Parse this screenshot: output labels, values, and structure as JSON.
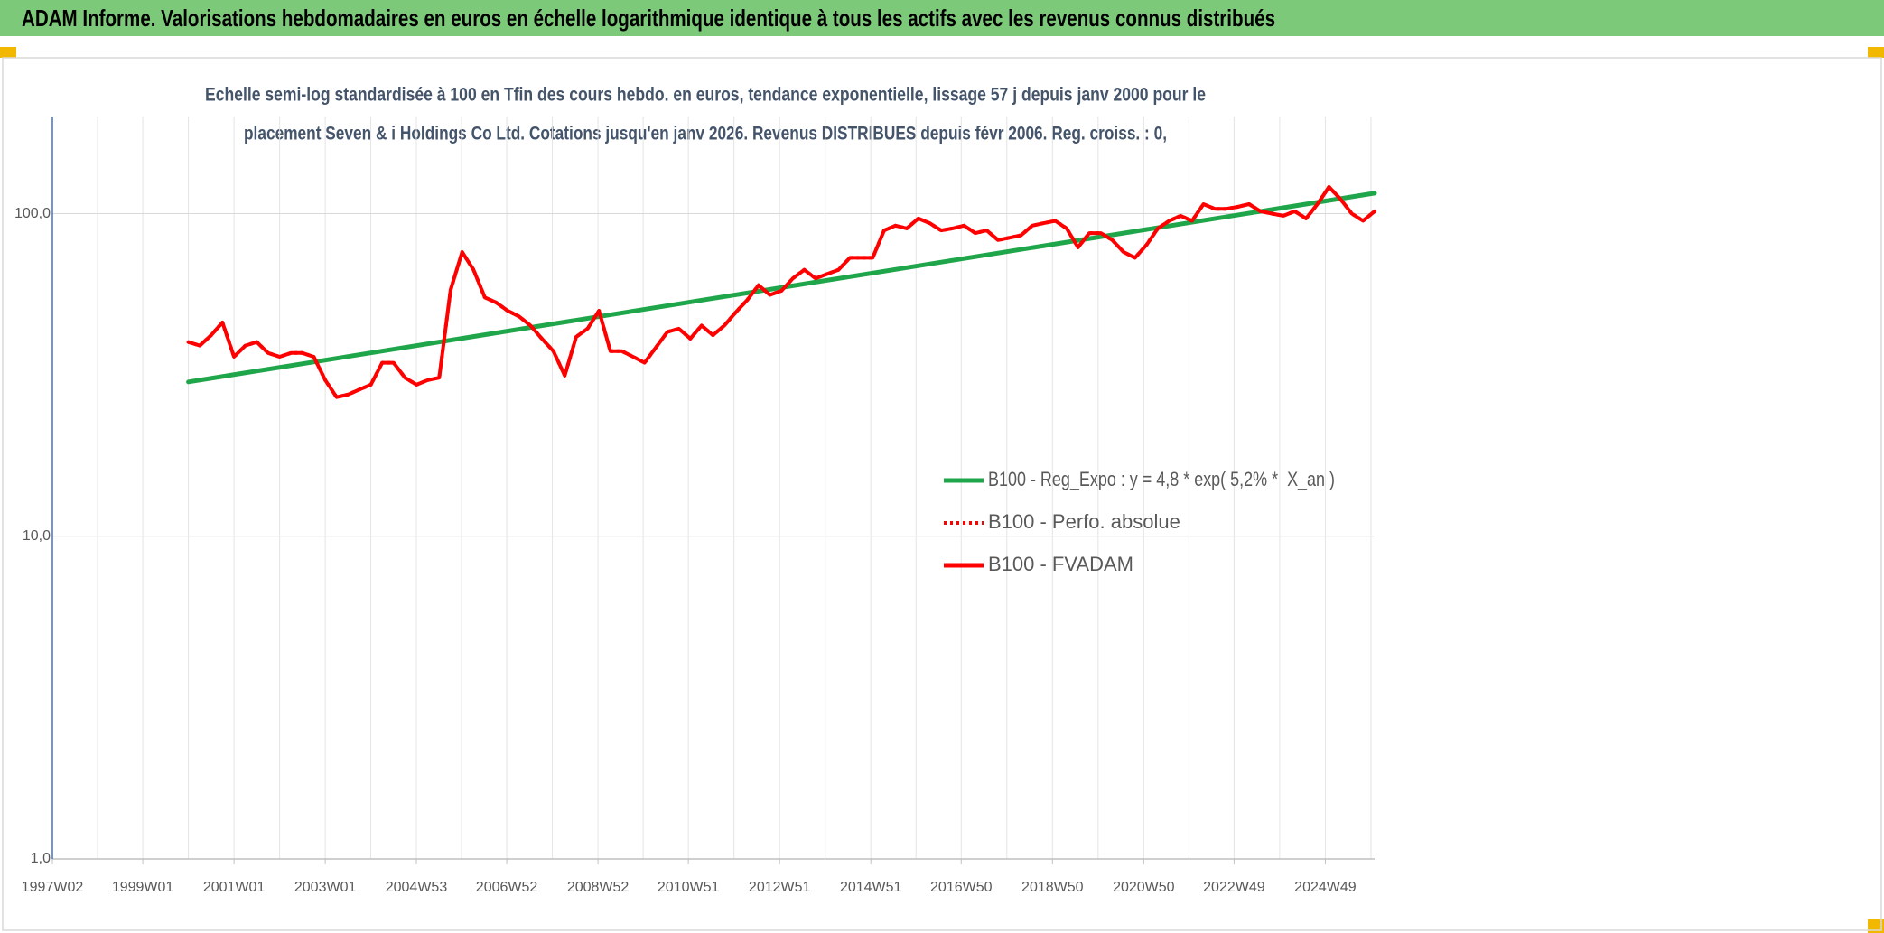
{
  "chart_data": {
    "type": "line",
    "title": "ADAM Informe. Valorisations hebdomadaires en euros en échelle logarithmique identique à tous les actifs avec les revenus connus distribués",
    "subtitle": [
      "Echelle semi-log standardisée à 100 en Tfin des cours hebdo. en euros, tendance exponentielle, lissage 57 j depuis janv 2000 pour le",
      "placement Seven & i Holdings Co Ltd. Cotations jusqu'en janv 2026. Revenus DISTRIBUES depuis févr 2006. Reg. croiss. : 0,"
    ],
    "log_scale": true,
    "grid": true,
    "legend": "right",
    "ylim": [
      1,
      200
    ],
    "yticks": [
      {
        "value": 1,
        "label": "1,0"
      },
      {
        "value": 10,
        "label": "10,0"
      },
      {
        "value": 100,
        "label": "100,0"
      }
    ],
    "xlim": [
      "1997W02",
      "2026W01"
    ],
    "xticks": [
      "1997W02",
      "1999W01",
      "2001W01",
      "2003W01",
      "2004W53",
      "2006W52",
      "2008W52",
      "2010W51",
      "2012W51",
      "2014W51",
      "2016W50",
      "2018W50",
      "2020W50",
      "2022W49",
      "2024W49"
    ],
    "series": [
      {
        "name": "B100 - Reg_Expo : y = 4,8 * exp( 5,2% *  X_an )",
        "color": "#1fa64a",
        "style": "solid",
        "x": [
          "2000W01",
          "2026W01"
        ],
        "values": [
          30.1,
          115.7
        ]
      },
      {
        "name": "B100 - Perfo. absolue",
        "color": "#ff0000",
        "style": "dotted",
        "x": [
          "2000W01",
          "2000W14",
          "2000W27",
          "2000W40",
          "2001W01",
          "2001W14",
          "2001W27",
          "2001W40",
          "2002W01",
          "2002W14",
          "2002W27",
          "2002W40",
          "2003W01",
          "2003W14",
          "2003W27",
          "2003W40",
          "2004W01",
          "2004W14",
          "2004W27",
          "2004W40",
          "2005W01",
          "2005W14",
          "2005W27",
          "2005W40",
          "2006W01",
          "2006W14",
          "2006W27",
          "2006W40",
          "2007W01",
          "2007W14",
          "2007W27",
          "2007W40",
          "2008W01",
          "2008W14",
          "2008W27",
          "2008W40",
          "2009W01",
          "2009W14",
          "2009W27",
          "2009W40",
          "2010W01",
          "2010W14",
          "2010W27",
          "2010W40",
          "2011W01",
          "2011W14",
          "2011W27",
          "2011W40",
          "2012W01",
          "2012W14",
          "2012W27",
          "2012W40",
          "2013W01",
          "2013W14",
          "2013W27",
          "2013W40",
          "2014W01",
          "2014W14",
          "2014W27",
          "2014W40",
          "2015W01",
          "2015W14",
          "2015W27",
          "2015W40",
          "2016W01",
          "2016W14",
          "2016W27",
          "2016W40",
          "2017W01",
          "2017W14",
          "2017W27",
          "2017W40",
          "2018W01",
          "2018W14",
          "2018W27",
          "2018W40",
          "2019W01",
          "2019W14",
          "2019W27",
          "2019W40",
          "2020W01",
          "2020W14",
          "2020W27",
          "2020W40",
          "2021W01",
          "2021W14",
          "2021W27",
          "2021W40",
          "2022W01",
          "2022W14",
          "2022W27",
          "2022W40",
          "2023W01",
          "2023W14",
          "2023W27",
          "2023W40",
          "2024W01",
          "2024W14",
          "2024W27",
          "2024W40",
          "2025W01",
          "2025W14",
          "2025W27",
          "2025W40",
          "2026W01"
        ],
        "values": [
          40,
          39,
          42,
          46,
          36,
          39,
          40,
          37,
          36,
          37,
          37,
          36,
          30.5,
          27,
          27.5,
          28.5,
          29.5,
          34.5,
          34.5,
          31,
          29.5,
          30.5,
          31,
          58,
          76,
          67,
          55,
          53,
          50,
          48,
          45,
          41,
          37.5,
          31.5,
          41.5,
          44,
          50,
          37.5,
          37.5,
          36,
          34.5,
          38.5,
          43,
          44,
          41,
          45,
          42,
          45,
          49.5,
          54,
          60,
          56,
          57.7,
          63,
          67,
          63,
          65,
          67,
          73,
          73,
          73,
          88.7,
          91.8,
          90,
          96.6,
          93.4,
          88.7,
          90,
          91.8,
          87,
          88.7,
          82.8,
          84.2,
          85.7,
          91.8,
          93.4,
          95,
          90,
          78.6,
          87,
          87,
          82.8,
          76,
          73,
          80,
          90,
          95,
          98.5,
          95,
          107,
          103.5,
          103.5,
          105,
          107,
          101.7,
          100,
          98.5,
          101.7,
          96.6,
          107,
          121,
          111,
          100,
          95,
          101.7
        ]
      },
      {
        "name": "B100 - FVADAM",
        "color": "#ff0000",
        "style": "solid",
        "x": [
          "2000W01",
          "2000W14",
          "2000W27",
          "2000W40",
          "2001W01",
          "2001W14",
          "2001W27",
          "2001W40",
          "2002W01",
          "2002W14",
          "2002W27",
          "2002W40",
          "2003W01",
          "2003W14",
          "2003W27",
          "2003W40",
          "2004W01",
          "2004W14",
          "2004W27",
          "2004W40",
          "2005W01",
          "2005W14",
          "2005W27",
          "2005W40",
          "2006W01",
          "2006W14",
          "2006W27",
          "2006W40",
          "2007W01",
          "2007W14",
          "2007W27",
          "2007W40",
          "2008W01",
          "2008W14",
          "2008W27",
          "2008W40",
          "2009W01",
          "2009W14",
          "2009W27",
          "2009W40",
          "2010W01",
          "2010W14",
          "2010W27",
          "2010W40",
          "2011W01",
          "2011W14",
          "2011W27",
          "2011W40",
          "2012W01",
          "2012W14",
          "2012W27",
          "2012W40",
          "2013W01",
          "2013W14",
          "2013W27",
          "2013W40",
          "2014W01",
          "2014W14",
          "2014W27",
          "2014W40",
          "2015W01",
          "2015W14",
          "2015W27",
          "2015W40",
          "2016W01",
          "2016W14",
          "2016W27",
          "2016W40",
          "2017W01",
          "2017W14",
          "2017W27",
          "2017W40",
          "2018W01",
          "2018W14",
          "2018W27",
          "2018W40",
          "2019W01",
          "2019W14",
          "2019W27",
          "2019W40",
          "2020W01",
          "2020W14",
          "2020W27",
          "2020W40",
          "2021W01",
          "2021W14",
          "2021W27",
          "2021W40",
          "2022W01",
          "2022W14",
          "2022W27",
          "2022W40",
          "2023W01",
          "2023W14",
          "2023W27",
          "2023W40",
          "2024W01",
          "2024W14",
          "2024W27",
          "2024W40",
          "2025W01",
          "2025W14",
          "2025W27",
          "2025W40",
          "2026W01"
        ],
        "values": [
          40,
          39,
          42,
          46,
          36,
          39,
          40,
          37,
          36,
          37,
          37,
          36,
          30.5,
          27,
          27.5,
          28.5,
          29.5,
          34.5,
          34.5,
          31,
          29.5,
          30.5,
          31,
          58,
          76,
          67,
          55,
          53,
          50,
          48,
          45,
          41,
          37.5,
          31.5,
          41.5,
          44,
          50,
          37.5,
          37.5,
          36,
          34.5,
          38.5,
          43,
          44,
          41,
          45,
          42,
          45,
          49.5,
          54,
          60,
          56,
          57.7,
          63,
          67,
          63,
          65,
          67,
          73,
          73,
          73,
          88.7,
          91.8,
          90,
          96.6,
          93.4,
          88.7,
          90,
          91.8,
          87,
          88.7,
          82.8,
          84.2,
          85.7,
          91.8,
          93.4,
          95,
          90,
          78.6,
          87,
          87,
          82.8,
          76,
          73,
          80,
          90,
          95,
          98.5,
          95,
          107,
          103.5,
          103.5,
          105,
          107,
          101.7,
          100,
          98.5,
          101.7,
          96.6,
          107,
          121,
          111,
          100,
          95,
          101.7
        ]
      }
    ]
  }
}
